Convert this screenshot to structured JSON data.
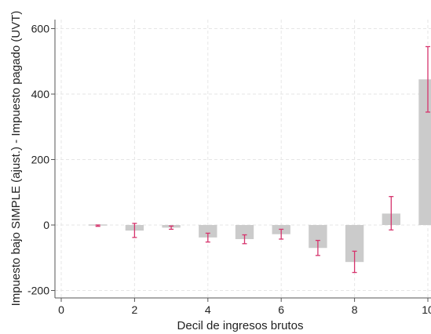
{
  "chart_data": {
    "type": "bar",
    "xlabel": "Decil de ingresos brutos",
    "ylabel": "Impuesto bajo SIMPLE (ajust.) - Impuesto pagado (UVT)",
    "xlim": [
      0,
      10
    ],
    "ylim": [
      -220,
      620
    ],
    "x_ticks": [
      0,
      2,
      4,
      6,
      8,
      10
    ],
    "y_ticks": [
      -200,
      0,
      200,
      400,
      600
    ],
    "grid": true,
    "legend": "none",
    "colors": {
      "bar": "#cbcbcb",
      "error_bar": "#d6336c",
      "grid": "#e6e6e6",
      "axis": "#555555"
    },
    "series": [
      {
        "x": [
          1,
          2,
          3,
          4,
          5,
          6,
          7,
          8,
          9,
          10
        ],
        "values": [
          -2,
          -17,
          -8,
          -38,
          -43,
          -28,
          -70,
          -113,
          35,
          445
        ],
        "ci_low": [
          -4,
          -38,
          -13,
          -52,
          -57,
          -43,
          -93,
          -145,
          -15,
          345
        ],
        "ci_high": [
          0,
          5,
          -3,
          -25,
          -30,
          -13,
          -47,
          -80,
          87,
          545
        ]
      }
    ]
  }
}
